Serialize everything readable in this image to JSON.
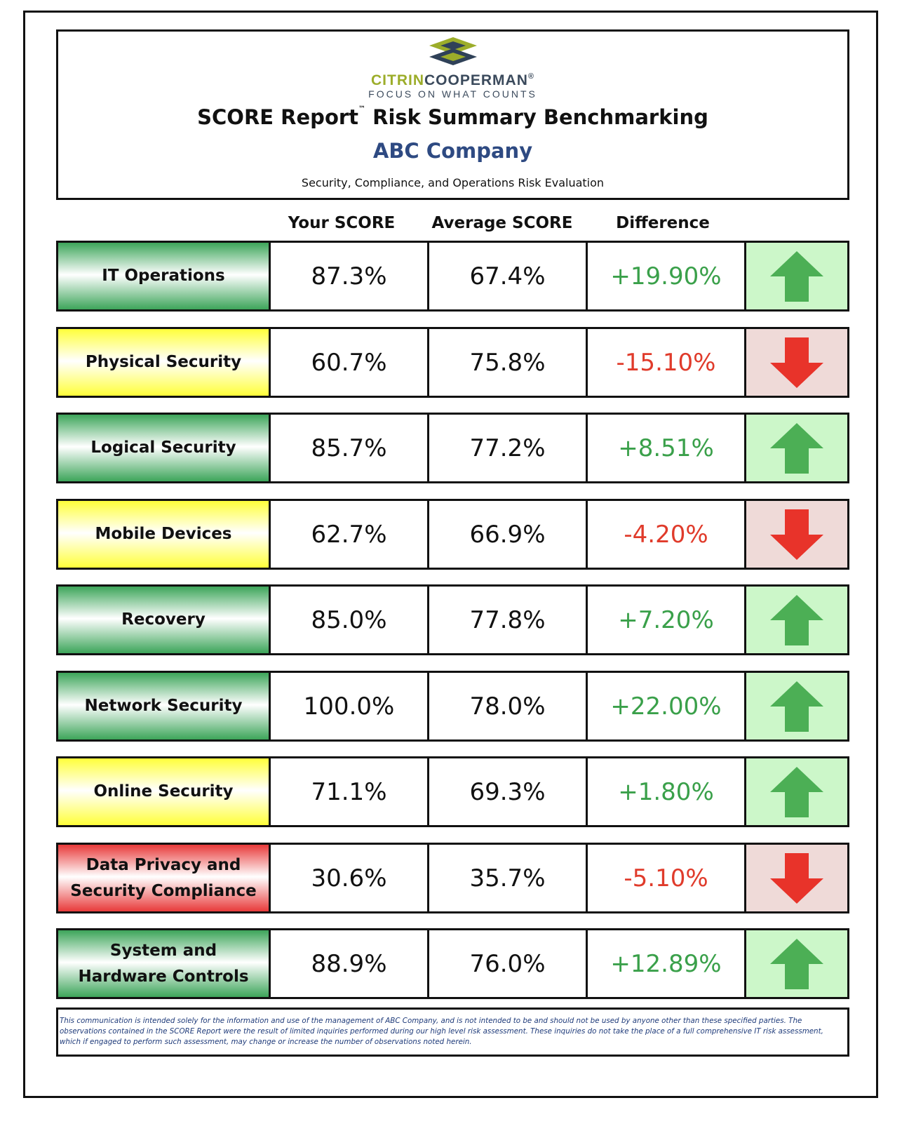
{
  "header": {
    "brand_part1": "CITRIN",
    "brand_part2": "COOPERMAN",
    "brand_reg": "®",
    "tagline": "FOCUS ON WHAT COUNTS",
    "title": "SCORE Report",
    "title_tm": "™",
    "title_rest": " Risk Summary Benchmarking",
    "company": "ABC Company",
    "subtitle": "Security, Compliance, and Operations Risk Evaluation"
  },
  "columns": {
    "your_score": "Your SCORE",
    "average_score": "Average SCORE",
    "difference": "Difference"
  },
  "colors": {
    "green": "#3da55a",
    "yellow": "#ffff3a",
    "red": "#e83a3a",
    "positive_text": "#3aa04a",
    "negative_text": "#e03b2b",
    "up_bg": "#ccf7c9",
    "down_bg": "#efdad8"
  },
  "rows": [
    {
      "category": "IT Operations",
      "your": "87.3%",
      "avg": "67.4%",
      "diff": "+19.90%",
      "status": "green",
      "trend": "up",
      "icon": "arrow-up-icon"
    },
    {
      "category": "Physical Security",
      "your": "60.7%",
      "avg": "75.8%",
      "diff": "-15.10%",
      "status": "yellow",
      "trend": "down",
      "icon": "arrow-down-icon"
    },
    {
      "category": "Logical Security",
      "your": "85.7%",
      "avg": "77.2%",
      "diff": "+8.51%",
      "status": "green",
      "trend": "up",
      "icon": "arrow-up-icon"
    },
    {
      "category": "Mobile Devices",
      "your": "62.7%",
      "avg": "66.9%",
      "diff": "-4.20%",
      "status": "yellow",
      "trend": "down",
      "icon": "arrow-down-icon"
    },
    {
      "category": "Recovery",
      "your": "85.0%",
      "avg": "77.8%",
      "diff": "+7.20%",
      "status": "green",
      "trend": "up",
      "icon": "arrow-up-icon"
    },
    {
      "category": "Network Security",
      "your": "100.0%",
      "avg": "78.0%",
      "diff": "+22.00%",
      "status": "green",
      "trend": "up",
      "icon": "arrow-up-icon"
    },
    {
      "category": "Online Security",
      "your": "71.1%",
      "avg": "69.3%",
      "diff": "+1.80%",
      "status": "yellow",
      "trend": "up",
      "icon": "arrow-up-icon"
    },
    {
      "category": "Data Privacy and Security Compliance",
      "your": "30.6%",
      "avg": "35.7%",
      "diff": "-5.10%",
      "status": "red",
      "trend": "down",
      "icon": "arrow-down-icon"
    },
    {
      "category": "System and Hardware Controls",
      "your": "88.9%",
      "avg": "76.0%",
      "diff": "+12.89%",
      "status": "green",
      "trend": "up",
      "icon": "arrow-up-icon"
    }
  ],
  "footer": {
    "disclaimer": "This communication is intended solely for the information and use of the management of ABC Company, and is not intended to be and should not be used by anyone other than these specified parties.  The observations contained in the SCORE Report were the result of limited inquiries performed during our high level risk assessment.  These inquiries do not take the place of a full comprehensive IT risk assessment, which if engaged to perform such assessment, may change or increase the number of observations noted herein."
  }
}
